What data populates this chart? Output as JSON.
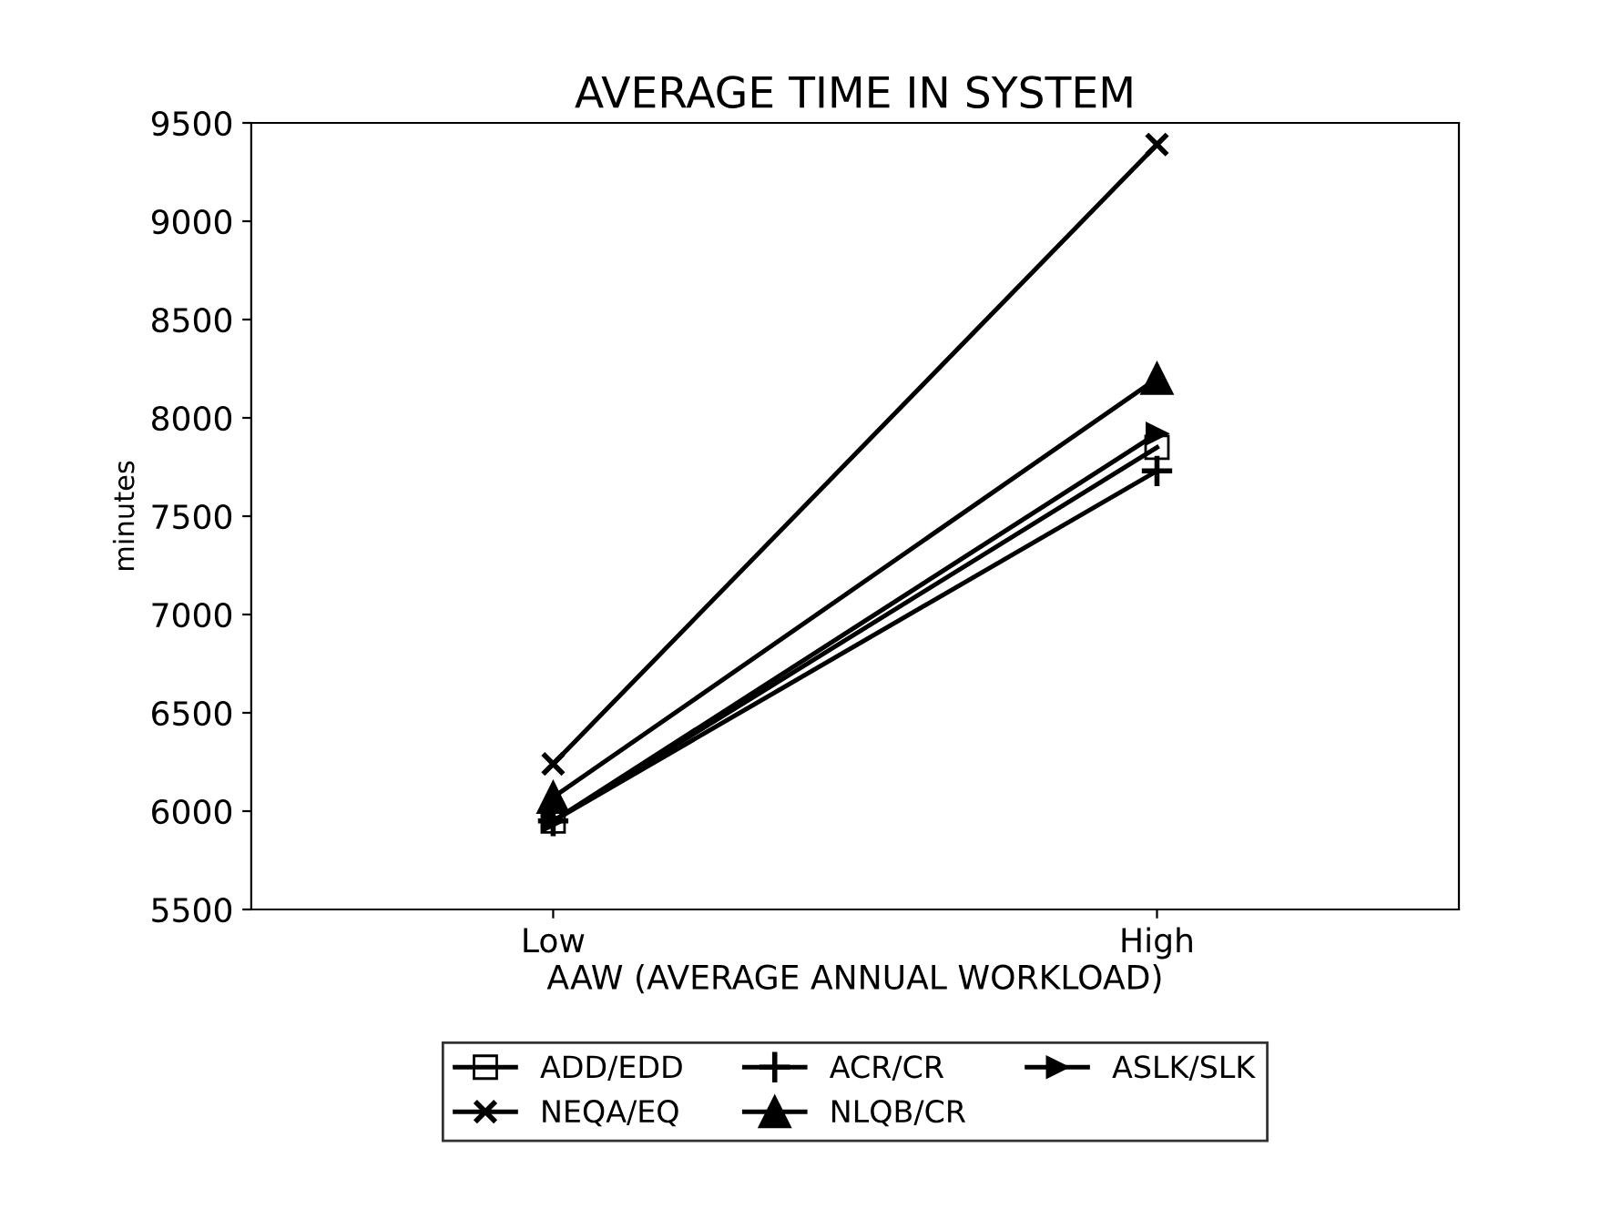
{
  "chart_data": {
    "type": "line",
    "title": "AVERAGE TIME IN SYSTEM",
    "xlabel": "AAW (AVERAGE ANNUAL WORKLOAD)",
    "ylabel": "minutes",
    "categories": [
      "Low",
      "High"
    ],
    "series": [
      {
        "name": "ADD/EDD",
        "color": "#000000",
        "marker": "square",
        "values": [
          5950,
          7850
        ]
      },
      {
        "name": "ACR/CR",
        "color": "#000000",
        "marker": "cross",
        "values": [
          5950,
          7730
        ]
      },
      {
        "name": "ASLK/SLK",
        "color": "#000000",
        "marker": "triangle",
        "values": [
          5950,
          7920
        ]
      },
      {
        "name": "NEQA/EQ",
        "color": "#000000",
        "marker": "cross",
        "values": [
          6240,
          9390
        ]
      },
      {
        "name": "NLQB/CR",
        "color": "#000000",
        "marker": "triangle",
        "values": [
          6070,
          8200
        ]
      }
    ],
    "ylim": [
      5500,
      9500
    ],
    "yticks": [
      5500,
      6000,
      6500,
      7000,
      7500,
      8000,
      8500,
      9000,
      9500
    ],
    "grid": false,
    "legend": "bottom",
    "line_style": "solid"
  }
}
